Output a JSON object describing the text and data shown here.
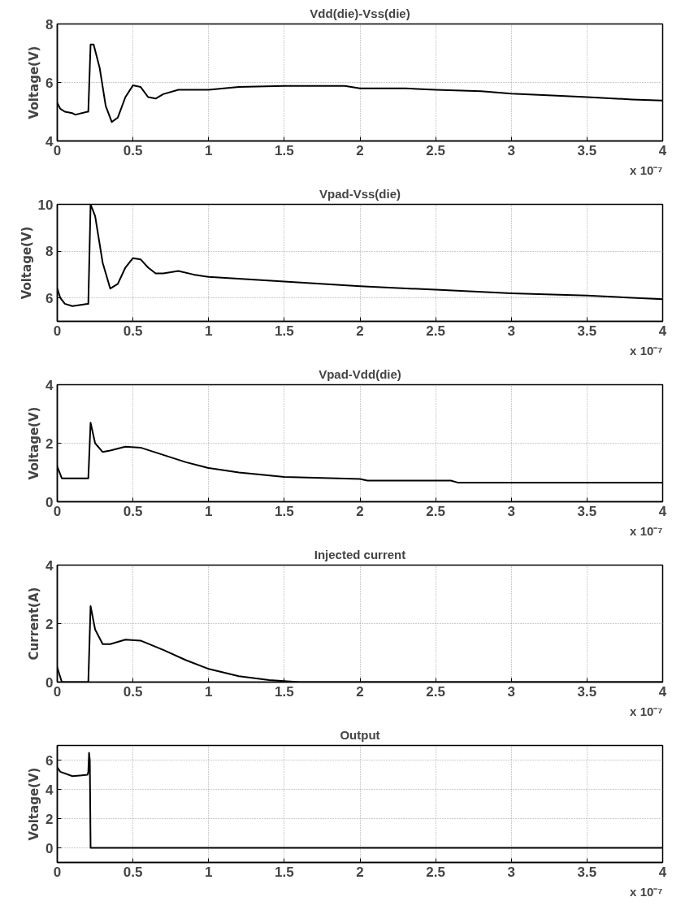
{
  "chart_data": [
    {
      "type": "line",
      "title": "Vdd(die)-Vss(die)",
      "ylabel": "Voltage(V)",
      "annotations": [
        "x 10⁻⁷"
      ],
      "xlim": [
        0,
        4
      ],
      "xticks": [
        0,
        0.5,
        1,
        1.5,
        2,
        2.5,
        3,
        3.5,
        4
      ],
      "ylim": [
        4,
        8
      ],
      "yticks": [
        4,
        6,
        8
      ],
      "grid": true,
      "series": [
        {
          "color": "#000000",
          "x": [
            0,
            0.02,
            0.05,
            0.1,
            0.12,
            0.2,
            0.205,
            0.22,
            0.24,
            0.28,
            0.32,
            0.36,
            0.4,
            0.45,
            0.5,
            0.55,
            0.6,
            0.65,
            0.7,
            0.8,
            1.0,
            1.1,
            1.2,
            1.5,
            1.9,
            2.0,
            2.3,
            2.5,
            2.8,
            3.0,
            3.3,
            3.5,
            3.8,
            4.0
          ],
          "values": [
            5.3,
            5.1,
            5.0,
            4.95,
            4.9,
            5.0,
            5.0,
            7.3,
            7.3,
            6.5,
            5.2,
            4.65,
            4.8,
            5.5,
            5.9,
            5.85,
            5.5,
            5.45,
            5.6,
            5.75,
            5.75,
            5.8,
            5.85,
            5.88,
            5.88,
            5.8,
            5.8,
            5.75,
            5.7,
            5.62,
            5.55,
            5.5,
            5.42,
            5.38
          ]
        }
      ]
    },
    {
      "type": "line",
      "title": "Vpad-Vss(die)",
      "ylabel": "Voltage(V)",
      "annotations": [
        "x 10⁻⁷"
      ],
      "xlim": [
        0,
        4
      ],
      "xticks": [
        0,
        0.5,
        1,
        1.5,
        2,
        2.5,
        3,
        3.5,
        4
      ],
      "ylim": [
        5,
        10
      ],
      "yticks": [
        6,
        8,
        10
      ],
      "grid": true,
      "series": [
        {
          "color": "#000000",
          "x": [
            0,
            0.02,
            0.05,
            0.1,
            0.2,
            0.205,
            0.22,
            0.25,
            0.3,
            0.35,
            0.4,
            0.45,
            0.5,
            0.55,
            0.6,
            0.65,
            0.7,
            0.8,
            0.9,
            1.0,
            1.5,
            2.0,
            2.5,
            3.0,
            3.5,
            4.0
          ],
          "values": [
            6.4,
            6.0,
            5.75,
            5.65,
            5.75,
            5.75,
            10.0,
            9.5,
            7.5,
            6.4,
            6.6,
            7.3,
            7.7,
            7.65,
            7.3,
            7.05,
            7.05,
            7.15,
            7.0,
            6.9,
            6.7,
            6.5,
            6.35,
            6.2,
            6.1,
            5.95
          ]
        }
      ]
    },
    {
      "type": "line",
      "title": "Vpad-Vdd(die)",
      "ylabel": "Voltage(V)",
      "annotations": [
        "x 10⁻⁷"
      ],
      "xlim": [
        0,
        4
      ],
      "xticks": [
        0,
        0.5,
        1,
        1.5,
        2,
        2.5,
        3,
        3.5,
        4
      ],
      "ylim": [
        0,
        4
      ],
      "yticks": [
        0,
        2,
        4
      ],
      "grid": true,
      "series": [
        {
          "color": "#000000",
          "x": [
            0,
            0.03,
            0.2,
            0.205,
            0.22,
            0.25,
            0.3,
            0.35,
            0.45,
            0.55,
            0.7,
            0.85,
            1.0,
            1.2,
            1.5,
            2.0,
            2.05,
            2.6,
            2.65,
            4.0
          ],
          "values": [
            1.2,
            0.8,
            0.8,
            0.8,
            2.7,
            2.0,
            1.7,
            1.75,
            1.88,
            1.85,
            1.6,
            1.35,
            1.15,
            1.0,
            0.85,
            0.78,
            0.72,
            0.72,
            0.65,
            0.65
          ]
        }
      ]
    },
    {
      "type": "line",
      "title": "Injected current",
      "ylabel": "Current(A)",
      "annotations": [
        "x 10⁻⁷"
      ],
      "xlim": [
        0,
        4
      ],
      "xticks": [
        0,
        0.5,
        1,
        1.5,
        2,
        2.5,
        3,
        3.5,
        4
      ],
      "ylim": [
        0,
        4
      ],
      "yticks": [
        0,
        2,
        4
      ],
      "grid": true,
      "series": [
        {
          "color": "#000000",
          "x": [
            0,
            0.03,
            0.2,
            0.205,
            0.22,
            0.25,
            0.3,
            0.35,
            0.45,
            0.55,
            0.7,
            0.85,
            1.0,
            1.2,
            1.4,
            1.6,
            4.0
          ],
          "values": [
            0.5,
            0.0,
            0.0,
            0.0,
            2.6,
            1.8,
            1.3,
            1.3,
            1.45,
            1.42,
            1.1,
            0.75,
            0.45,
            0.2,
            0.07,
            0.0,
            0.0
          ]
        }
      ]
    },
    {
      "type": "line",
      "title": "Output",
      "ylabel": "Voltage(V)",
      "annotations": [
        "x 10⁻⁷"
      ],
      "xlim": [
        0,
        4
      ],
      "xticks": [
        0,
        0.5,
        1,
        1.5,
        2,
        2.5,
        3,
        3.5,
        4
      ],
      "ylim": [
        -1,
        7
      ],
      "yticks": [
        0,
        2,
        4,
        6
      ],
      "grid": true,
      "series": [
        {
          "color": "#000000",
          "x": [
            0,
            0.02,
            0.1,
            0.15,
            0.2,
            0.205,
            0.21,
            0.215,
            0.22,
            4.0
          ],
          "values": [
            5.5,
            5.2,
            4.9,
            4.95,
            5.0,
            5.2,
            6.5,
            6.0,
            0.0,
            0.0
          ]
        }
      ]
    }
  ]
}
